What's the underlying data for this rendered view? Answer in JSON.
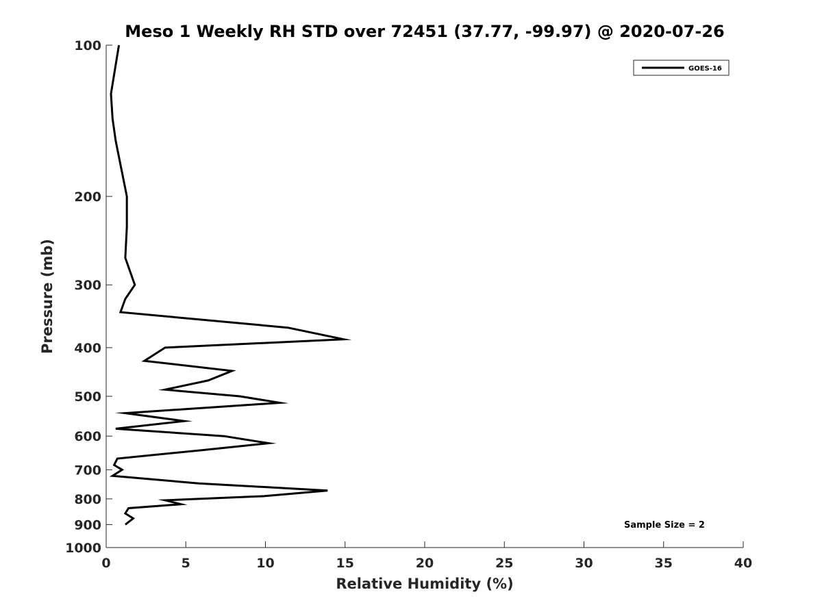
{
  "chart_data": {
    "type": "line",
    "title": "Meso 1 Weekly RH STD over 72451 (37.77, -99.97) @ 2020-07-26",
    "xlabel": "Relative Humidity (%)",
    "ylabel": "Pressure (mb)",
    "xlim": [
      0,
      40
    ],
    "ylim": [
      100,
      1000
    ],
    "y_scale": "log",
    "y_reversed": true,
    "grid": false,
    "legend_position": "top-right",
    "x_ticks": [
      0,
      5,
      10,
      15,
      20,
      25,
      30,
      35,
      40
    ],
    "y_ticks": [
      100,
      200,
      300,
      400,
      500,
      600,
      700,
      800,
      900,
      1000
    ],
    "annotation": "Sample Size = 2",
    "series": [
      {
        "name": "GOES-16",
        "color": "#000000",
        "x": [
          0.8,
          0.3,
          0.4,
          0.6,
          1.3,
          1.3,
          1.2,
          1.8,
          1.2,
          0.9,
          11.4,
          14.9,
          3.7,
          2.4,
          7.9,
          6.4,
          3.7,
          8.4,
          10.9,
          1.2,
          4.9,
          0.6,
          7.4,
          10.2,
          6.0,
          0.7,
          0.5,
          1.0,
          0.4,
          5.8,
          13.9,
          9.9,
          3.7,
          4.7,
          1.4,
          1.2,
          1.7,
          1.2
        ],
        "y": [
          100,
          125,
          140,
          155,
          200,
          230,
          265,
          300,
          320,
          340,
          365,
          385,
          400,
          425,
          445,
          465,
          485,
          500,
          515,
          540,
          560,
          580,
          600,
          620,
          640,
          665,
          685,
          700,
          720,
          745,
          770,
          790,
          805,
          820,
          835,
          855,
          875,
          900
        ]
      }
    ]
  }
}
